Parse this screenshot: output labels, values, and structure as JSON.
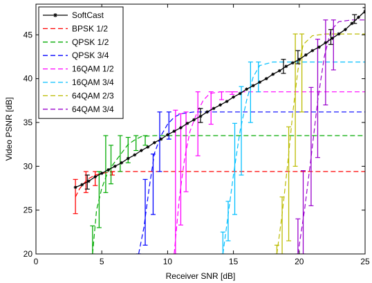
{
  "chart_data": {
    "type": "line",
    "xlabel": "Receiver SNR [dB]",
    "ylabel": "Video PSNR [dB]",
    "xlim": [
      0,
      25
    ],
    "ylim": [
      20,
      48.5
    ],
    "xticks": [
      0,
      5,
      10,
      15,
      20,
      25
    ],
    "yticks": [
      20,
      25,
      30,
      35,
      40,
      45
    ],
    "xtick_labels": [
      "0",
      "5",
      "10",
      "15",
      "20",
      "25"
    ],
    "ytick_labels": [
      "20",
      "25",
      "30",
      "35",
      "40",
      "45"
    ],
    "grid": false,
    "legend_position": "top-left",
    "series": [
      {
        "name": "SoftCast",
        "color": "#000000",
        "style": "solid-star",
        "x": [
          3,
          3.5,
          4,
          4.5,
          5,
          5.5,
          6,
          6.5,
          7,
          7.5,
          8,
          8.5,
          9,
          9.5,
          10,
          10.5,
          11,
          11.5,
          12,
          12.5,
          13,
          13.5,
          14,
          14.5,
          15,
          15.5,
          16,
          16.5,
          17,
          17.5,
          18,
          18.5,
          19,
          19.5,
          20,
          20.5,
          21,
          21.5,
          22,
          22.5,
          23,
          23.5,
          24,
          24.5,
          25
        ],
        "y": [
          27.6,
          27.9,
          28.3,
          28.8,
          29.2,
          29.6,
          30.0,
          30.4,
          30.9,
          31.3,
          31.8,
          32.2,
          32.7,
          33.1,
          33.6,
          34.0,
          34.4,
          34.9,
          35.3,
          35.7,
          36.2,
          36.6,
          37.0,
          37.4,
          37.9,
          38.3,
          38.8,
          39.2,
          39.6,
          40.0,
          40.5,
          40.9,
          41.4,
          41.8,
          42.2,
          42.7,
          43.2,
          43.6,
          44.1,
          44.6,
          45.1,
          45.6,
          46.3,
          47.0,
          47.7
        ]
      },
      {
        "name": "BPSK 1/2",
        "color": "#ff0000",
        "style": "dashed",
        "x": [
          3,
          3.3,
          3.6,
          4,
          4.5,
          5,
          5.5,
          6,
          7,
          8,
          10,
          15,
          20,
          25
        ],
        "y": [
          26.5,
          27.4,
          28.0,
          28.6,
          29.0,
          29.2,
          29.3,
          29.4,
          29.4,
          29.4,
          29.4,
          29.4,
          29.4,
          29.4
        ],
        "errorbars": [
          {
            "x": 3,
            "lo": 24.6,
            "hi": 28.5
          },
          {
            "x": 3.8,
            "lo": 27.0,
            "hi": 29.4
          },
          {
            "x": 4.5,
            "lo": 27.8,
            "hi": 29.4
          },
          {
            "x": 5.8,
            "lo": 29.0,
            "hi": 29.4
          },
          {
            "x": 20.3,
            "lo": 29.4,
            "hi": 29.4
          }
        ]
      },
      {
        "name": "QPSK 1/2",
        "color": "#00aa00",
        "style": "dashed",
        "x": [
          4.3,
          4.6,
          5,
          5.5,
          6,
          6.5,
          7,
          7.5,
          8,
          9,
          10,
          15,
          20,
          25
        ],
        "y": [
          20.0,
          25.0,
          27.5,
          29.5,
          30.5,
          31.5,
          32.5,
          33.0,
          33.4,
          33.5,
          33.5,
          33.5,
          33.5,
          33.5
        ],
        "errorbars": [
          {
            "x": 4.3,
            "lo": 20.0,
            "hi": 23.2
          },
          {
            "x": 4.8,
            "lo": 23.0,
            "hi": 29.4
          },
          {
            "x": 5.3,
            "lo": 27.0,
            "hi": 33.5
          },
          {
            "x": 5.7,
            "lo": 28.0,
            "hi": 32.4
          },
          {
            "x": 6.4,
            "lo": 29.4,
            "hi": 33.5
          },
          {
            "x": 7.0,
            "lo": 30.4,
            "hi": 33.3
          },
          {
            "x": 7.6,
            "lo": 31.8,
            "hi": 33.5
          },
          {
            "x": 8.3,
            "lo": 32.4,
            "hi": 33.5
          }
        ]
      },
      {
        "name": "QPSK 3/4",
        "color": "#0000ff",
        "style": "dashed",
        "x": [
          7.8,
          8.2,
          8.6,
          9,
          9.5,
          10,
          10.5,
          11,
          12,
          15,
          20,
          25
        ],
        "y": [
          20.0,
          23.0,
          27.5,
          31.5,
          33.5,
          34.8,
          35.6,
          36.0,
          36.2,
          36.2,
          36.2,
          36.2
        ],
        "errorbars": [
          {
            "x": 7.8,
            "lo": 20.0,
            "hi": 20.0
          },
          {
            "x": 8.3,
            "lo": 21.0,
            "hi": 28.5
          },
          {
            "x": 8.9,
            "lo": 24.5,
            "hi": 31.4
          },
          {
            "x": 9.4,
            "lo": 29.4,
            "hi": 36.2
          },
          {
            "x": 10.1,
            "lo": 33.1,
            "hi": 36.2
          }
        ]
      },
      {
        "name": "16QAM 1/2",
        "color": "#ff00ff",
        "style": "dashed",
        "x": [
          10.5,
          10.9,
          11.3,
          11.7,
          12.2,
          12.7,
          13.2,
          14,
          15,
          20,
          25
        ],
        "y": [
          20.0,
          26.5,
          31.0,
          34.0,
          36.0,
          37.5,
          38.3,
          38.5,
          38.5,
          38.5,
          38.5
        ],
        "errorbars": [
          {
            "x": 10.6,
            "lo": 20.0,
            "hi": 36.4
          },
          {
            "x": 11.0,
            "lo": 23.3,
            "hi": 36.0
          },
          {
            "x": 11.4,
            "lo": 27.1,
            "hi": 36.2
          },
          {
            "x": 12.3,
            "lo": 31.2,
            "hi": 38.5
          },
          {
            "x": 13.3,
            "lo": 34.8,
            "hi": 38.5
          },
          {
            "x": 14.1,
            "lo": 37.6,
            "hi": 38.5
          },
          {
            "x": 14.9,
            "lo": 38.2,
            "hi": 38.5
          }
        ]
      },
      {
        "name": "16QAM 3/4",
        "color": "#00bfff",
        "style": "dashed",
        "x": [
          14.2,
          14.6,
          15,
          15.5,
          16,
          16.5,
          17,
          18,
          20,
          25
        ],
        "y": [
          20.0,
          24.5,
          29.0,
          34.0,
          37.5,
          40.2,
          41.5,
          41.9,
          41.9,
          41.9
        ],
        "errorbars": [
          {
            "x": 14.2,
            "lo": 20.0,
            "hi": 22.5
          },
          {
            "x": 14.6,
            "lo": 21.5,
            "hi": 26.0
          },
          {
            "x": 15.1,
            "lo": 24.5,
            "hi": 34.9
          },
          {
            "x": 15.6,
            "lo": 29.0,
            "hi": 39.1
          },
          {
            "x": 16.3,
            "lo": 35.0,
            "hi": 41.9
          },
          {
            "x": 16.9,
            "lo": 38.5,
            "hi": 41.9
          }
        ]
      },
      {
        "name": "64QAM 2/3",
        "color": "#bbbb00",
        "style": "dashed",
        "x": [
          18.3,
          18.7,
          19.1,
          19.5,
          19.9,
          20.3,
          21,
          22,
          25
        ],
        "y": [
          20.0,
          24.5,
          30.0,
          36.0,
          41.0,
          43.9,
          44.9,
          45.1,
          45.1
        ],
        "errorbars": [
          {
            "x": 18.3,
            "lo": 20.0,
            "hi": 21.0
          },
          {
            "x": 18.7,
            "lo": 20.0,
            "hi": 26.5
          },
          {
            "x": 19.2,
            "lo": 21.5,
            "hi": 34.5
          },
          {
            "x": 19.7,
            "lo": 30.0,
            "hi": 45.1
          },
          {
            "x": 20.2,
            "lo": 36.2,
            "hi": 45.1
          }
        ]
      },
      {
        "name": "64QAM 3/4",
        "color": "#9900cc",
        "style": "dashed",
        "x": [
          19.9,
          20.4,
          20.9,
          21.4,
          21.9,
          22.4,
          23,
          24,
          25
        ],
        "y": [
          20.0,
          25.0,
          31.0,
          37.5,
          42.5,
          45.5,
          46.5,
          46.7,
          46.7
        ],
        "errorbars": [
          {
            "x": 19.9,
            "lo": 20.0,
            "hi": 24.0
          },
          {
            "x": 20.3,
            "lo": 20.0,
            "hi": 29.5
          },
          {
            "x": 20.9,
            "lo": 25.5,
            "hi": 39.0
          },
          {
            "x": 21.4,
            "lo": 31.0,
            "hi": 44.5
          },
          {
            "x": 22.0,
            "lo": 37.0,
            "hi": 46.7
          },
          {
            "x": 22.6,
            "lo": 41.0,
            "hi": 46.7
          }
        ]
      }
    ],
    "softcast_errorbars": [
      {
        "x": 3.9,
        "lo": 27.4,
        "hi": 29.0
      },
      {
        "x": 12.5,
        "lo": 35.0,
        "hi": 36.6
      },
      {
        "x": 18.8,
        "lo": 40.6,
        "hi": 42.2
      },
      {
        "x": 19.9,
        "lo": 41.7,
        "hi": 43.2
      },
      {
        "x": 22.4,
        "lo": 43.9,
        "hi": 45.6
      },
      {
        "x": 24.2,
        "lo": 46.3,
        "hi": 47.3
      },
      {
        "x": 25.0,
        "lo": 47.5,
        "hi": 48.1
      }
    ]
  }
}
